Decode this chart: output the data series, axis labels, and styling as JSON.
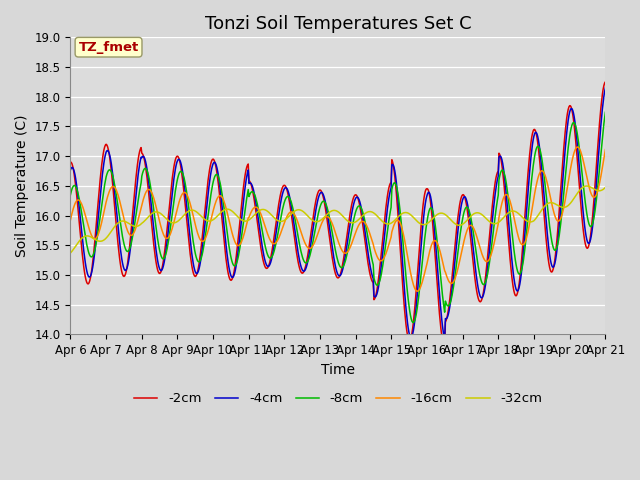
{
  "title": "Tonzi Soil Temperatures Set C",
  "xlabel": "Time",
  "ylabel": "Soil Temperature (C)",
  "ylim": [
    14.0,
    19.0
  ],
  "yticks": [
    14.0,
    14.5,
    15.0,
    15.5,
    16.0,
    16.5,
    17.0,
    17.5,
    18.0,
    18.5,
    19.0
  ],
  "xtick_labels": [
    "Apr 6",
    "Apr 7",
    "Apr 8",
    "Apr 9",
    "Apr 10",
    "Apr 11",
    "Apr 12",
    "Apr 13",
    "Apr 14",
    "Apr 15",
    "Apr 16",
    "Apr 17",
    "Apr 18",
    "Apr 19",
    "Apr 20",
    "Apr 21"
  ],
  "colors": {
    "-2cm": "#dd0000",
    "-4cm": "#0000cc",
    "-8cm": "#00bb00",
    "-16cm": "#ff8800",
    "-32cm": "#cccc00"
  },
  "legend_labels": [
    "-2cm",
    "-4cm",
    "-8cm",
    "-16cm",
    "-32cm"
  ],
  "annotation_text": "TZ_fmet",
  "annotation_color": "#aa0000",
  "annotation_bg": "#ffffcc",
  "fig_bg": "#d8d8d8",
  "plot_bg": "#dcdcdc",
  "title_fontsize": 13,
  "axis_label_fontsize": 10,
  "tick_fontsize": 8.5
}
